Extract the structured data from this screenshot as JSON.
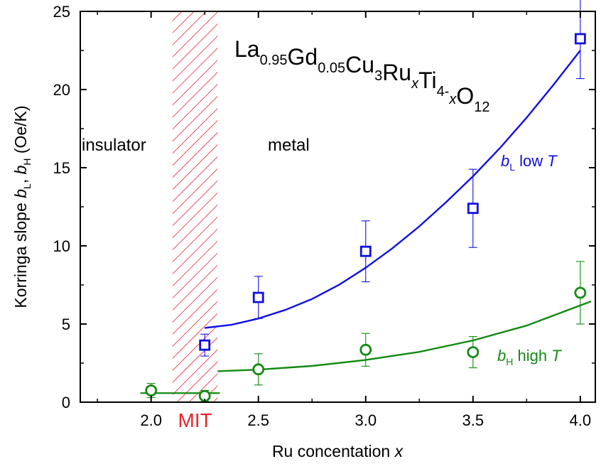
{
  "chart_data": {
    "type": "scatter",
    "xlabel_text": "Ru concentation",
    "xlabel_var": "x",
    "ylabel_main": "Korringa slope",
    "ylabel_sym1": "b",
    "ylabel_sub1": "L",
    "ylabel_sep": ",",
    "ylabel_sym2": "b",
    "ylabel_sub2": "H",
    "ylabel_unit": "(Oe/K)",
    "xlim": [
      1.67,
      4.07
    ],
    "ylim": [
      0,
      25
    ],
    "x_ticks": [
      2.0,
      2.5,
      3.0,
      3.5,
      4.0
    ],
    "x_tick_labels": [
      "2.0",
      "2.5",
      "3.0",
      "3.5",
      "4.0"
    ],
    "y_ticks": [
      0,
      5,
      10,
      15,
      20,
      25
    ],
    "y_tick_labels": [
      "0",
      "5",
      "10",
      "15",
      "20",
      "25"
    ],
    "grid": false,
    "mit_region": {
      "x_start": 2.1,
      "x_end": 2.31,
      "label": "MIT",
      "color": "#e8242a"
    },
    "region_labels": {
      "left": "insulator",
      "right": "metal"
    },
    "formula": {
      "parts": [
        {
          "t": "La",
          "style": "normal"
        },
        {
          "t": "0.95",
          "style": "sub"
        },
        {
          "t": "Gd",
          "style": "normal"
        },
        {
          "t": "0.05",
          "style": "sub"
        },
        {
          "t": "Cu",
          "style": "normal"
        },
        {
          "t": "3",
          "style": "sub"
        },
        {
          "t": "Ru",
          "style": "normal"
        },
        {
          "t": "x",
          "style": "subitalic"
        },
        {
          "t": "Ti",
          "style": "normal"
        },
        {
          "t": "4-",
          "style": "sub"
        },
        {
          "t": "x",
          "style": "subitalic"
        },
        {
          "t": "O",
          "style": "normal"
        },
        {
          "t": "12",
          "style": "sub"
        }
      ]
    },
    "series": [
      {
        "label_sym": "b",
        "label_sub": "L",
        "label_text": "low",
        "label_var": "T",
        "color": "#1010e0",
        "marker": "square",
        "points": [
          {
            "x": 2.25,
            "y": 3.65,
            "err": 0.7
          },
          {
            "x": 2.5,
            "y": 6.7,
            "err": 1.35
          },
          {
            "x": 3.0,
            "y": 9.65,
            "err": 1.95
          },
          {
            "x": 3.5,
            "y": 12.4,
            "err": 2.5
          },
          {
            "x": 4.0,
            "y": 23.25,
            "err": 2.55
          }
        ],
        "fit": {
          "x": [
            2.25,
            2.375,
            2.5,
            2.625,
            2.75,
            2.875,
            3.0,
            3.125,
            3.25,
            3.375,
            3.5,
            3.625,
            3.75,
            3.875,
            4.0
          ],
          "y": [
            4.75,
            4.95,
            5.35,
            5.9,
            6.6,
            7.5,
            8.6,
            9.85,
            11.25,
            12.8,
            14.45,
            16.25,
            18.2,
            20.3,
            22.5
          ]
        }
      },
      {
        "label_sym": "b",
        "label_sub": "H",
        "label_text": "high",
        "label_var": "T",
        "color": "#138a13",
        "marker": "circle",
        "points": [
          {
            "x": 2.0,
            "y": 0.75,
            "err": 0.45
          },
          {
            "x": 2.25,
            "y": 0.4,
            "err": 0.35
          },
          {
            "x": 2.5,
            "y": 2.1,
            "err": 1.0
          },
          {
            "x": 3.0,
            "y": 3.35,
            "err": 1.05
          },
          {
            "x": 3.5,
            "y": 3.2,
            "err": 1.0
          },
          {
            "x": 4.0,
            "y": 7.0,
            "err": 2.0
          }
        ],
        "fit": {
          "x": [
            2.31,
            2.5,
            2.75,
            3.0,
            3.25,
            3.5,
            3.75,
            4.05
          ],
          "y": [
            1.98,
            2.08,
            2.32,
            2.7,
            3.22,
            3.95,
            4.9,
            6.45
          ]
        },
        "insulator_line": {
          "x": [
            1.95,
            2.32
          ],
          "y": [
            0.58,
            0.58
          ]
        }
      }
    ]
  }
}
